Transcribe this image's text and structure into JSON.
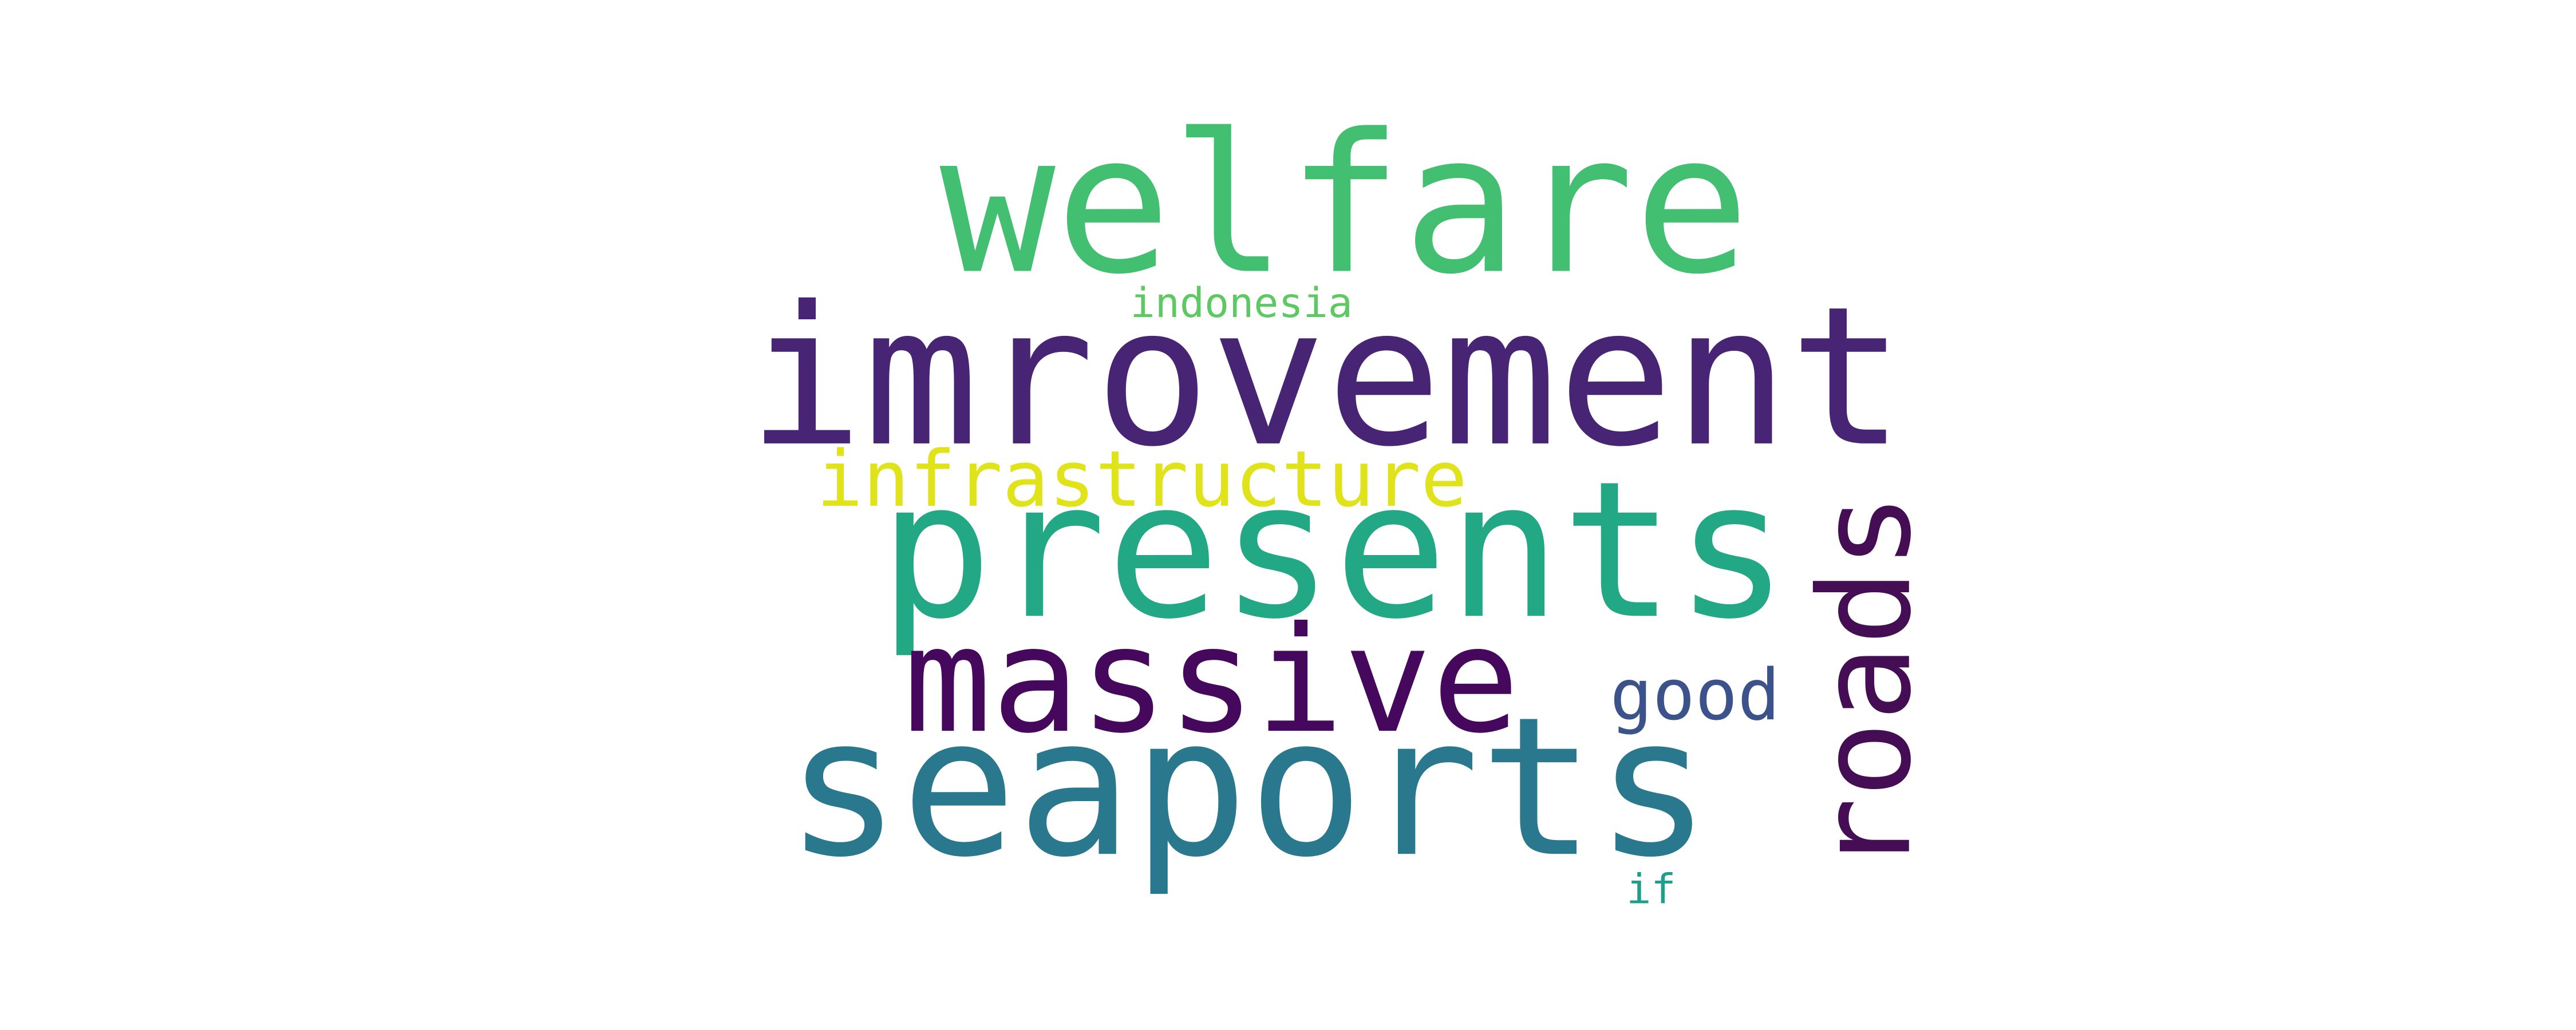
{
  "words": [
    {
      "text": "welfare",
      "color": "#43bf71"
    },
    {
      "text": "imrovement",
      "color": "#482475"
    },
    {
      "text": "infrastructure",
      "color": "#e0e31a"
    },
    {
      "text": "presents",
      "color": "#22a884"
    },
    {
      "text": "massive",
      "color": "#45085c"
    },
    {
      "text": "seaports",
      "color": "#2a788e"
    },
    {
      "text": "roads",
      "color": "#450d54"
    },
    {
      "text": "good",
      "color": "#3b528b"
    },
    {
      "text": "indonesia",
      "color": "#5ec962"
    },
    {
      "text": "if",
      "color": "#1f9e89"
    }
  ]
}
